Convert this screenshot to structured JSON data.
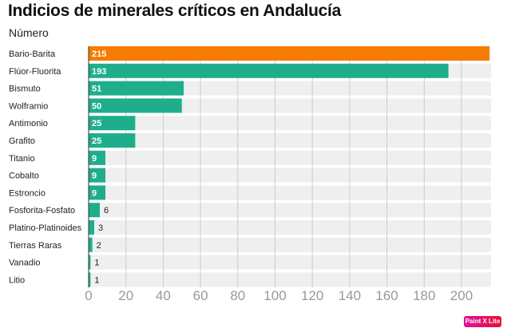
{
  "chart_data": {
    "type": "bar",
    "orientation": "horizontal",
    "title": "Indicios de minerales críticos en Andalucía",
    "subtitle": "Número",
    "categories": [
      "Bario-Barita",
      "Flúor-Fluorita",
      "Bismuto",
      "Wolframio",
      "Antimonio",
      "Grafito",
      "Titanio",
      "Cobalto",
      "Estroncio",
      "Fosforita-Fosfato",
      "Platino-Platinoides",
      "Tierras Raras",
      "Vanadio",
      "Litio"
    ],
    "values": [
      215,
      193,
      51,
      50,
      25,
      25,
      9,
      9,
      9,
      6,
      3,
      2,
      1,
      1
    ],
    "highlight_index": 0,
    "xlim": [
      0,
      215
    ],
    "xticks": [
      0,
      20,
      40,
      60,
      80,
      100,
      120,
      140,
      160,
      180,
      200
    ],
    "grid": true,
    "colors": {
      "highlight": "#f57c00",
      "bar": "#1fae8c",
      "band": "#efefef",
      "grid": "#cccccc",
      "tick": "#999999"
    }
  },
  "watermark": "Paint X Lite"
}
